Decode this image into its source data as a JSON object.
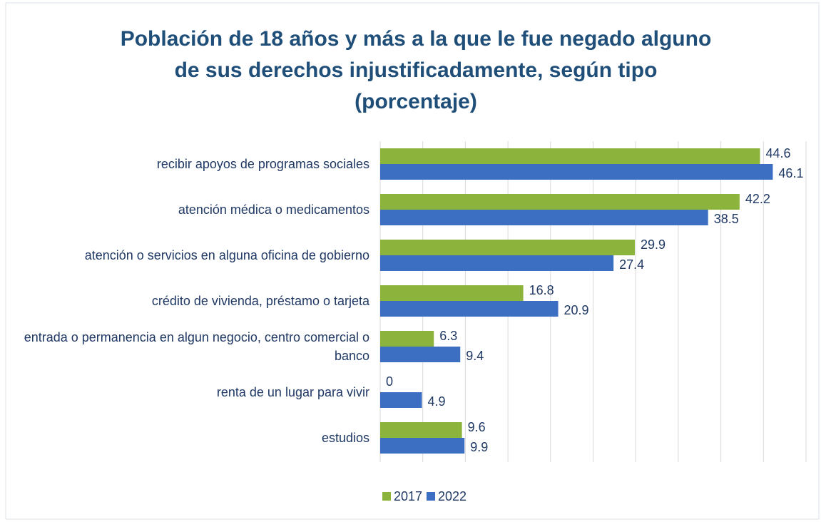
{
  "chart_data": {
    "type": "hbar",
    "title": [
      "Población de 18 años y más a la que le fue negado alguno",
      "de sus derechos injustificadamente, según tipo",
      "(porcentaje)"
    ],
    "categories": [
      "recibir apoyos de programas sociales",
      "atención médica o medicamentos",
      "atención o servicios en alguna oficina de gobierno",
      "crédito de vivienda, préstamo o tarjeta",
      "entrada o permanencia en algun negocio, centro comercial o banco",
      "renta de un lugar para vivir",
      "estudios"
    ],
    "series": [
      {
        "name": "2017",
        "color": "#8cb33c",
        "values": [
          44.6,
          42.2,
          29.9,
          16.8,
          6.3,
          0,
          9.6
        ]
      },
      {
        "name": "2022",
        "color": "#3c6fc2",
        "values": [
          46.1,
          38.5,
          27.4,
          20.9,
          9.4,
          4.9,
          9.9
        ]
      }
    ],
    "xlim": [
      0,
      50
    ],
    "xticks": [
      0,
      5,
      10,
      15,
      20,
      25,
      30,
      35,
      40,
      45,
      50
    ],
    "grid": true,
    "legend": "bottom"
  }
}
